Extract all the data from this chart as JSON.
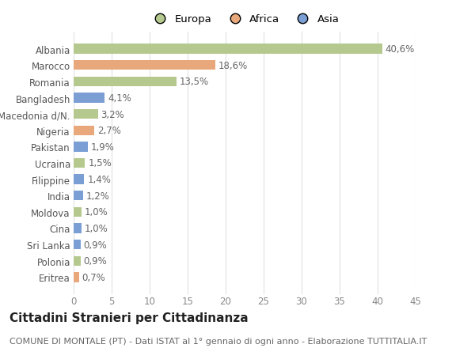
{
  "categories": [
    "Eritrea",
    "Polonia",
    "Sri Lanka",
    "Cina",
    "Moldova",
    "India",
    "Filippine",
    "Ucraina",
    "Pakistan",
    "Nigeria",
    "Macedonia d/N.",
    "Bangladesh",
    "Romania",
    "Marocco",
    "Albania"
  ],
  "values": [
    0.7,
    0.9,
    0.9,
    1.0,
    1.0,
    1.2,
    1.4,
    1.5,
    1.9,
    2.7,
    3.2,
    4.1,
    13.5,
    18.6,
    40.6
  ],
  "labels": [
    "0,7%",
    "0,9%",
    "0,9%",
    "1,0%",
    "1,0%",
    "1,2%",
    "1,4%",
    "1,5%",
    "1,9%",
    "2,7%",
    "3,2%",
    "4,1%",
    "13,5%",
    "18,6%",
    "40,6%"
  ],
  "colors": [
    "#e8a87c",
    "#b5c98e",
    "#7b9fd4",
    "#7b9fd4",
    "#b5c98e",
    "#7b9fd4",
    "#7b9fd4",
    "#b5c98e",
    "#7b9fd4",
    "#e8a87c",
    "#b5c98e",
    "#7b9fd4",
    "#b5c98e",
    "#e8a87c",
    "#b5c98e"
  ],
  "legend_labels": [
    "Europa",
    "Africa",
    "Asia"
  ],
  "legend_colors": [
    "#b5c98e",
    "#e8a87c",
    "#7b9fd4"
  ],
  "title": "Cittadini Stranieri per Cittadinanza",
  "subtitle": "COMUNE DI MONTALE (PT) - Dati ISTAT al 1° gennaio di ogni anno - Elaborazione TUTTITALIA.IT",
  "xlim": [
    0,
    45
  ],
  "xticks": [
    0,
    5,
    10,
    15,
    20,
    25,
    30,
    35,
    40,
    45
  ],
  "background_color": "#ffffff",
  "grid_color": "#e0e0e0",
  "label_fontsize": 8.5,
  "title_fontsize": 11,
  "subtitle_fontsize": 8,
  "ytick_fontsize": 8.5,
  "xtick_fontsize": 8.5
}
